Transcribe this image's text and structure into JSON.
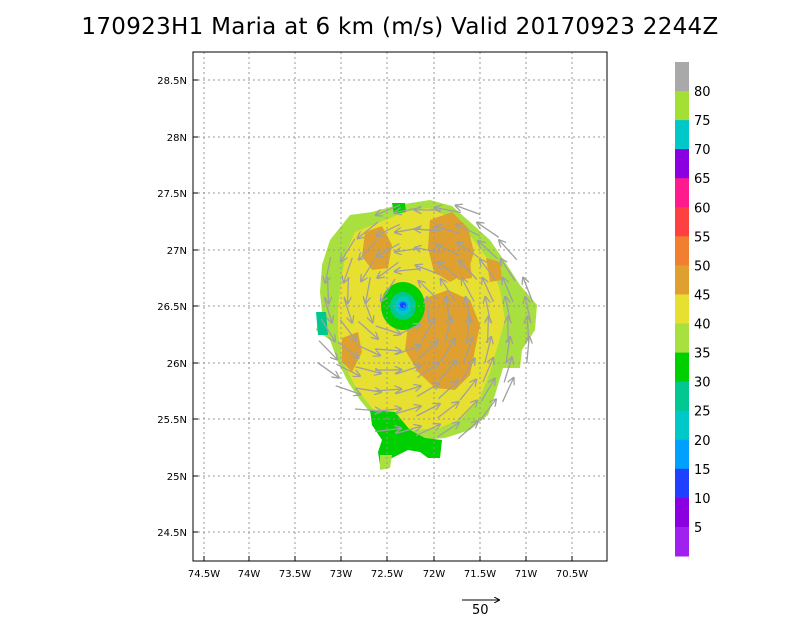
{
  "title": "170923H1 Maria at 6 km (m/s) Valid 20170923 2244Z",
  "map": {
    "lon_labels": [
      "74.5W",
      "74W",
      "73.5W",
      "73W",
      "72.5W",
      "72W",
      "71.5W",
      "71W",
      "70.5W"
    ],
    "lat_labels": [
      "28.5N",
      "28N",
      "27.5N",
      "27N",
      "26.5N",
      "26N",
      "25.5N",
      "25N",
      "24.5N"
    ],
    "grid": "dotted",
    "storm_center_lon": -72.35,
    "storm_center_lat": 26.5
  },
  "colorbar": {
    "labels": [
      "80",
      "75",
      "70",
      "65",
      "60",
      "55",
      "50",
      "45",
      "40",
      "35",
      "30",
      "25",
      "20",
      "15",
      "10",
      "5"
    ],
    "colors_top_to_bottom": [
      "#a9a9a9",
      "#a4e034",
      "#00c8c8",
      "#8a00e0",
      "#ff1b8d",
      "#ff4040",
      "#f08030",
      "#e0a030",
      "#e8e030",
      "#a8e040",
      "#00d000",
      "#00c890",
      "#00c8c8",
      "#00a0ff",
      "#2040ff",
      "#8a00e0",
      "#a020f0"
    ]
  },
  "reference_vector": {
    "label": "50"
  }
}
